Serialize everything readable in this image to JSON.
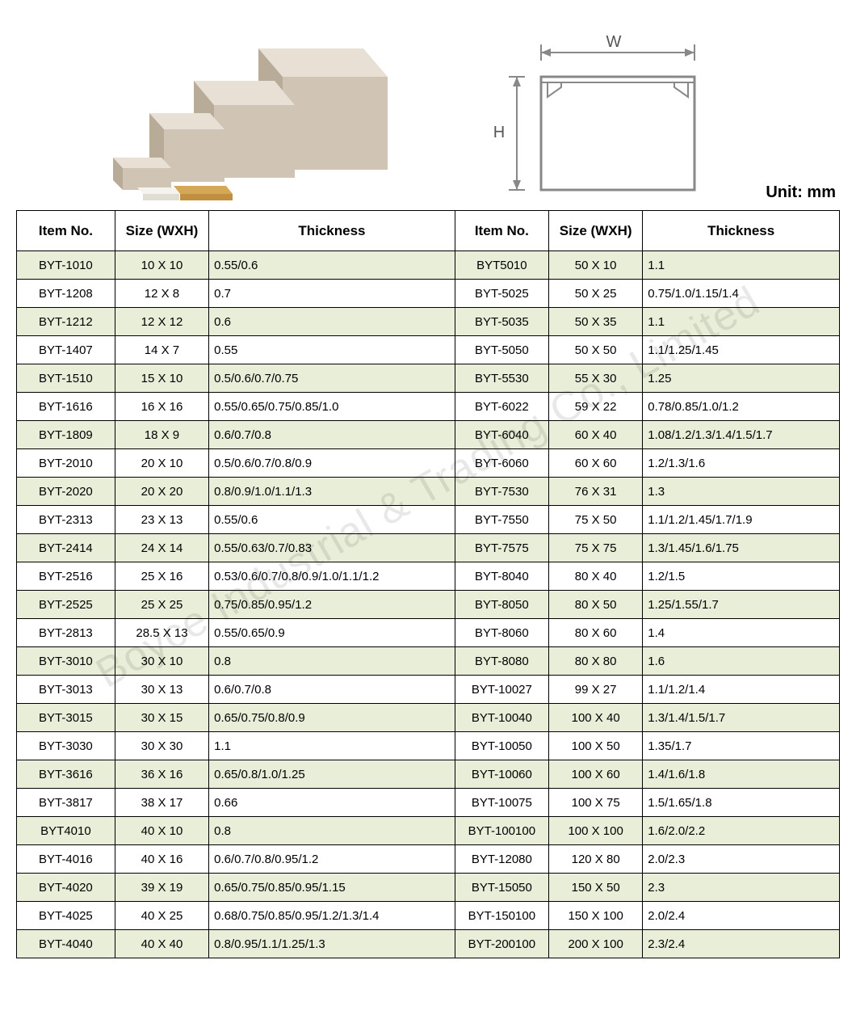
{
  "unit_label": "Unit: mm",
  "diagram": {
    "w_label": "W",
    "h_label": "H",
    "stroke": "#888888",
    "fill": "#f2f2f0"
  },
  "watermark": "Boyce Industrial & Trading Co., Limited",
  "product_colors": {
    "face_light": "#e8e0d5",
    "face_mid": "#d0c5b5",
    "face_dark": "#b8ac98",
    "accent": "#d4a857"
  },
  "table": {
    "headers": [
      "Item No.",
      "Size (WXH)",
      "Thickness",
      "Item No.",
      "Size (WXH)",
      "Thickness"
    ],
    "rows": [
      [
        "BYT-1010",
        "10 X 10",
        "0.55/0.6",
        "BYT5010",
        "50 X 10",
        "1.1"
      ],
      [
        "BYT-1208",
        "12 X 8",
        "0.7",
        "BYT-5025",
        "50 X 25",
        "0.75/1.0/1.15/1.4"
      ],
      [
        "BYT-1212",
        "12 X 12",
        "0.6",
        "BYT-5035",
        "50 X 35",
        "1.1"
      ],
      [
        "BYT-1407",
        "14 X 7",
        "0.55",
        "BYT-5050",
        "50 X 50",
        "1.1/1.25/1.45"
      ],
      [
        "BYT-1510",
        "15 X 10",
        "0.5/0.6/0.7/0.75",
        "BYT-5530",
        "55 X 30",
        "1.25"
      ],
      [
        "BYT-1616",
        "16 X 16",
        "0.55/0.65/0.75/0.85/1.0",
        "BYT-6022",
        "59 X 22",
        "0.78/0.85/1.0/1.2"
      ],
      [
        "BYT-1809",
        "18 X 9",
        "0.6/0.7/0.8",
        "BYT-6040",
        "60 X 40",
        "1.08/1.2/1.3/1.4/1.5/1.7"
      ],
      [
        "BYT-2010",
        "20 X 10",
        "0.5/0.6/0.7/0.8/0.9",
        "BYT-6060",
        "60 X 60",
        "1.2/1.3/1.6"
      ],
      [
        "BYT-2020",
        "20 X 20",
        "0.8/0.9/1.0/1.1/1.3",
        "BYT-7530",
        "76 X 31",
        "1.3"
      ],
      [
        "BYT-2313",
        "23 X 13",
        "0.55/0.6",
        "BYT-7550",
        "75 X 50",
        "1.1/1.2/1.45/1.7/1.9"
      ],
      [
        "BYT-2414",
        "24 X 14",
        "0.55/0.63/0.7/0.83",
        "BYT-7575",
        "75 X 75",
        "1.3/1.45/1.6/1.75"
      ],
      [
        "BYT-2516",
        "25 X 16",
        "0.53/0.6/0.7/0.8/0.9/1.0/1.1/1.2",
        "BYT-8040",
        "80 X 40",
        "1.2/1.5"
      ],
      [
        "BYT-2525",
        "25 X 25",
        "0.75/0.85/0.95/1.2",
        "BYT-8050",
        "80 X 50",
        "1.25/1.55/1.7"
      ],
      [
        "BYT-2813",
        "28.5 X 13",
        "0.55/0.65/0.9",
        "BYT-8060",
        "80 X 60",
        "1.4"
      ],
      [
        "BYT-3010",
        "30 X 10",
        "0.8",
        "BYT-8080",
        "80 X 80",
        "1.6"
      ],
      [
        "BYT-3013",
        "30 X 13",
        "0.6/0.7/0.8",
        "BYT-10027",
        "99 X 27",
        "1.1/1.2/1.4"
      ],
      [
        "BYT-3015",
        "30 X 15",
        "0.65/0.75/0.8/0.9",
        "BYT-10040",
        "100 X 40",
        "1.3/1.4/1.5/1.7"
      ],
      [
        "BYT-3030",
        "30 X 30",
        "1.1",
        "BYT-10050",
        "100 X 50",
        "1.35/1.7"
      ],
      [
        "BYT-3616",
        "36 X 16",
        "0.65/0.8/1.0/1.25",
        "BYT-10060",
        "100 X 60",
        "1.4/1.6/1.8"
      ],
      [
        "BYT-3817",
        "38 X 17",
        "0.66",
        "BYT-10075",
        "100 X 75",
        "1.5/1.65/1.8"
      ],
      [
        "BYT4010",
        "40 X 10",
        "0.8",
        "BYT-100100",
        "100 X 100",
        "1.6/2.0/2.2"
      ],
      [
        "BYT-4016",
        "40 X 16",
        "0.6/0.7/0.8/0.95/1.2",
        "BYT-12080",
        "120 X 80",
        "2.0/2.3"
      ],
      [
        "BYT-4020",
        "39 X 19",
        "0.65/0.75/0.85/0.95/1.15",
        "BYT-15050",
        "150 X 50",
        "2.3"
      ],
      [
        "BYT-4025",
        "40 X 25",
        "0.68/0.75/0.85/0.95/1.2/1.3/1.4",
        "BYT-150100",
        "150 X 100",
        "2.0/2.4"
      ],
      [
        "BYT-4040",
        "40 X 40",
        "0.8/0.95/1.1/1.25/1.3",
        "BYT-200100",
        "200 X 100",
        "2.3/2.4"
      ]
    ],
    "alt_row_bg": "#e8eed8",
    "row_bg": "#ffffff",
    "border_color": "#000000"
  }
}
